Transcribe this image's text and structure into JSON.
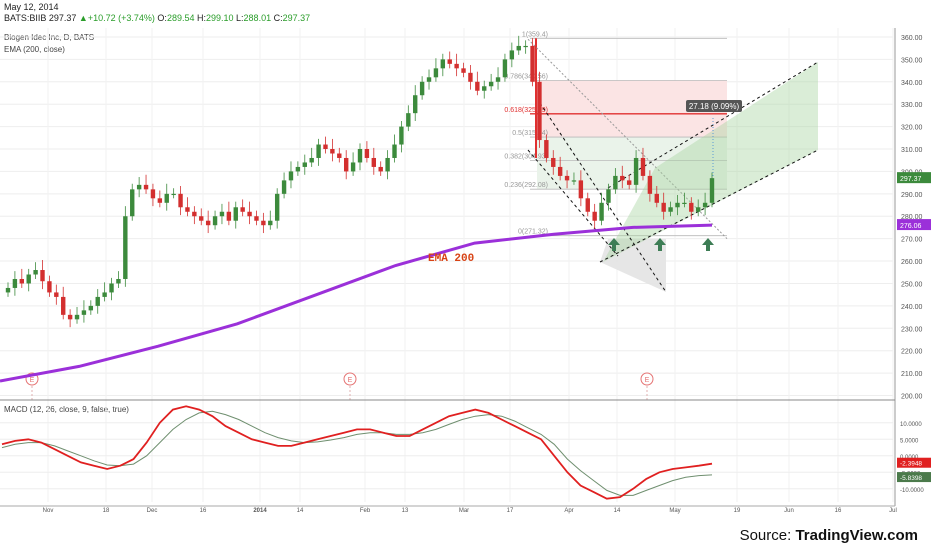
{
  "header": {
    "date": "May 12, 2014",
    "symbol": "BATS:BIIB",
    "price": "297.37",
    "change": "+10.72 (+3.74%)",
    "o_label": "O:",
    "o": "289.54",
    "h_label": "H:",
    "h": "299.10",
    "l_label": "L:",
    "l": "288.01",
    "c_label": "C:",
    "c": "297.37"
  },
  "indicators": {
    "main": "Biogen Idec Inc, D, BATS",
    "ema": "EMA (200, close)",
    "macd": "MACD (12, 26, close, 9, false, true)"
  },
  "annotations": {
    "ema_text": "EMA 200",
    "measure": "27.18 (9.09%)",
    "earnings_marker": "E"
  },
  "source": {
    "prefix": "Source: ",
    "brand": "TradingView.com"
  },
  "colors": {
    "up": "#3c8a3c",
    "down": "#d32f2f",
    "ema": "#9b30d9",
    "macd": "#e02020",
    "signal": "#6f8f6f",
    "fib": "#e03030",
    "channel_fill": "#a8d5a0",
    "arrow": "#3d7d55"
  },
  "chart_data": [
    {
      "type": "candlestick",
      "x_ticks": [
        "Nov",
        "18",
        "Dec",
        "16",
        "2014",
        "14",
        "Feb",
        "13",
        "Mar",
        "17",
        "Apr",
        "14",
        "May",
        "19",
        "Jun",
        "16",
        "Jul"
      ],
      "ylim": [
        198,
        364
      ],
      "y_ticks": [
        200,
        210,
        220,
        230,
        240,
        250,
        260,
        270,
        280,
        290,
        300,
        310,
        320,
        330,
        340,
        350,
        360
      ],
      "last_price_label": "297.37",
      "ema_label": "276.06",
      "closes": [
        248,
        252,
        250,
        254,
        256,
        251,
        246,
        244,
        236,
        234,
        236,
        238,
        240,
        244,
        246,
        250,
        252,
        280,
        292,
        294,
        292,
        288,
        286,
        290,
        290,
        284,
        282,
        280,
        278,
        276,
        280,
        282,
        278,
        284,
        282,
        280,
        278,
        276,
        278,
        290,
        296,
        300,
        302,
        304,
        306,
        312,
        310,
        308,
        306,
        300,
        304,
        310,
        306,
        302,
        300,
        306,
        312,
        320,
        326,
        334,
        340,
        342,
        346,
        350,
        348,
        346,
        344,
        340,
        336,
        338,
        340,
        342,
        350,
        354,
        356,
        356,
        340,
        314,
        306,
        302,
        298,
        296,
        296,
        288,
        282,
        278,
        286,
        292,
        298,
        296,
        294,
        306,
        298,
        290,
        286,
        282,
        284,
        286,
        286,
        282,
        284,
        286,
        297
      ],
      "ema_200": [
        206.5,
        213,
        222,
        232,
        245,
        258,
        268,
        272,
        275,
        276.06
      ],
      "fibonacci": [
        {
          "ratio": "1(359.4)",
          "value": 359.4
        },
        {
          "ratio": "0.786(340.56)",
          "value": 340.56
        },
        {
          "ratio": "0.618(325.69)",
          "value": 325.69
        },
        {
          "ratio": "0.5(315.34)",
          "value": 315.34
        },
        {
          "ratio": "0.382(304.93)",
          "value": 304.93
        },
        {
          "ratio": "0.236(292.08)",
          "value": 292.08
        },
        {
          "ratio": "0(271.32)",
          "value": 271.32
        }
      ]
    },
    {
      "type": "line",
      "name": "MACD",
      "ylim": [
        -14,
        16
      ],
      "y_ticks": [
        10,
        5,
        0,
        -5,
        -10
      ],
      "y_tick_labels": [
        "10.0000",
        "5.0000",
        "0.0000",
        "-5.0000",
        "-10.0000"
      ],
      "macd_label": "-2.3948",
      "signal_label": "-5.8398",
      "macd": [
        3.5,
        4.5,
        5,
        4,
        2,
        0,
        -2,
        -3,
        -4,
        -3,
        -1,
        4,
        10,
        14,
        15,
        14,
        12,
        9,
        7,
        5,
        4,
        3,
        3,
        4,
        5,
        6,
        7,
        8,
        8,
        7,
        6,
        6,
        8,
        10,
        12,
        13,
        14,
        13,
        11,
        9,
        7,
        5,
        0,
        -5,
        -9,
        -11,
        -13,
        -12.5,
        -10,
        -7,
        -5,
        -4,
        -3.5,
        -3,
        -2.4
      ],
      "signal": [
        2.5,
        3.5,
        4,
        4,
        3,
        1.5,
        0,
        -1.5,
        -2.8,
        -3,
        -2.5,
        0,
        4,
        8,
        11,
        13,
        13.5,
        12.5,
        11,
        9,
        7,
        5.5,
        4.5,
        4,
        4.2,
        4.8,
        5.5,
        6.5,
        7,
        7,
        6.5,
        6.5,
        7,
        8,
        9.5,
        11,
        12,
        12.5,
        12,
        10.5,
        8.5,
        6.5,
        3.5,
        -1,
        -4.5,
        -7.5,
        -10.5,
        -12,
        -12,
        -10.5,
        -9,
        -7.5,
        -6.5,
        -6,
        -5.8
      ]
    }
  ]
}
